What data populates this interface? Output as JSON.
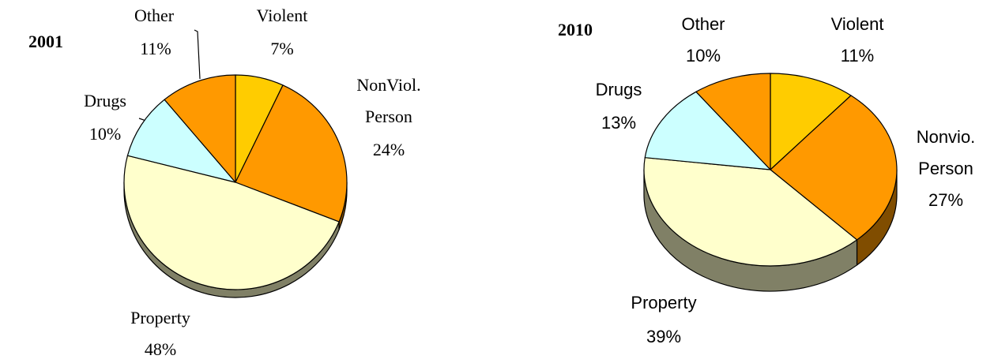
{
  "chart_data": [
    {
      "type": "pie",
      "title": "2001",
      "categories": [
        "Violent",
        "NonViol. Person",
        "Property",
        "Drugs",
        "Other"
      ],
      "values": [
        7,
        24,
        48,
        10,
        11
      ],
      "value_labels": [
        "7%",
        "24%",
        "48%",
        "10%",
        "11%"
      ],
      "colors": [
        "#FFCC00",
        "#FF9900",
        "#FFFFCC",
        "#CCFFFF",
        "#FF9900"
      ]
    },
    {
      "type": "pie",
      "title": "2010",
      "categories": [
        "Violent",
        "Nonvio. Person",
        "Property",
        "Drugs",
        "Other"
      ],
      "values": [
        11,
        27,
        39,
        13,
        10
      ],
      "value_labels": [
        "11%",
        "27%",
        "39%",
        "13%",
        "10%"
      ],
      "colors": [
        "#FFCC00",
        "#FF9900",
        "#FFFFCC",
        "#CCFFFF",
        "#FF9900"
      ]
    }
  ]
}
